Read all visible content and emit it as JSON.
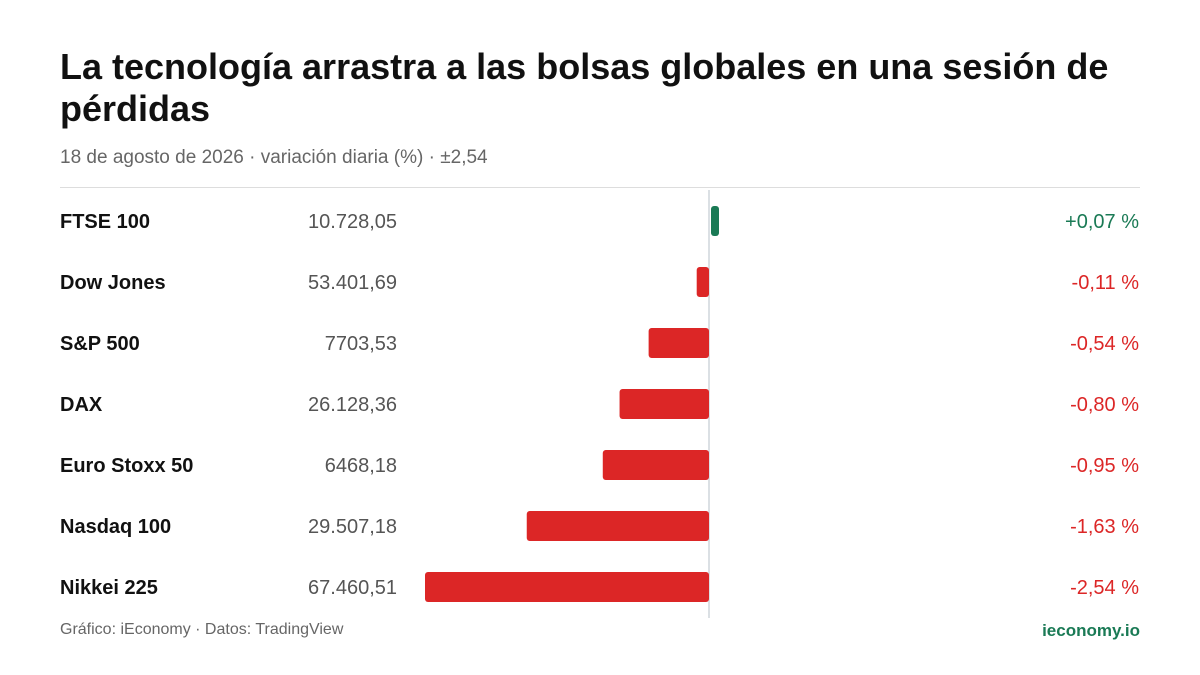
{
  "title": "La tecnología arrastra a las bolsas globales en una sesión de pérdidas",
  "subtitle": "18 de agosto de 2026 · variación diaria (%) · ±2,54",
  "colors": {
    "positive": "#1a7a55",
    "negative": "#dc2626",
    "axis": "#cfd6dc"
  },
  "chart_data": {
    "type": "bar",
    "orientation": "horizontal",
    "categories": [
      "FTSE 100",
      "Dow Jones",
      "S&P 500",
      "DAX",
      "Euro Stoxx 50",
      "Nasdaq 100",
      "Nikkei 225"
    ],
    "index_values": [
      "10.728,05",
      "53.401,69",
      "7703,53",
      "26.128,36",
      "6468,18",
      "29.507,18",
      "67.460,51"
    ],
    "values": [
      0.07,
      -0.11,
      -0.54,
      -0.8,
      -0.95,
      -1.63,
      -2.54
    ],
    "value_labels": [
      "+0,07 %",
      "-0,11 %",
      "-0,54 %",
      "-0,80 %",
      "-0,95 %",
      "-1,63 %",
      "-2,54 %"
    ],
    "xlim": [
      -2.54,
      2.54
    ],
    "grid": false
  },
  "footer": {
    "source": "Gráfico: iEconomy · Datos: TradingView",
    "brand": "ieconomy.io"
  }
}
